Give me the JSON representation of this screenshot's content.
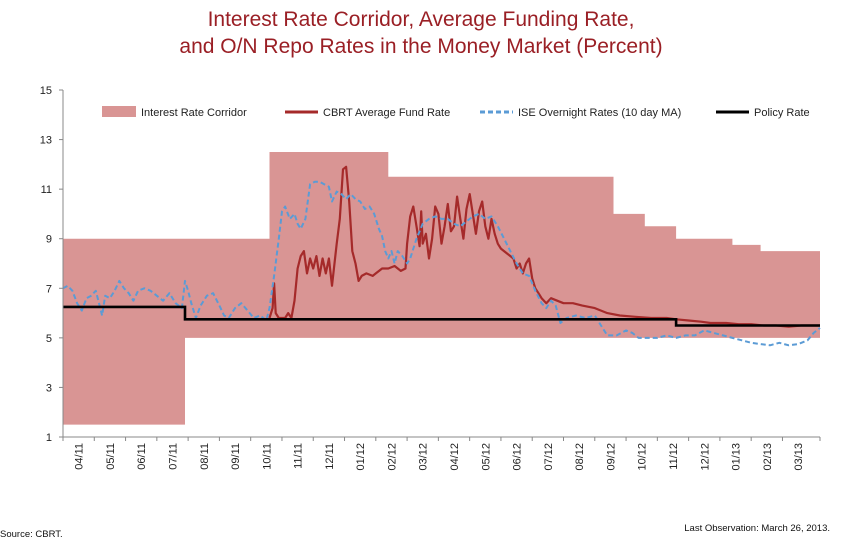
{
  "chart_data": {
    "type": "line",
    "title_line1": "Interest Rate Corridor, Average Funding Rate,",
    "title_line2": "and O/N Repo Rates in the Money Market (Percent)",
    "ylim": [
      1,
      15
    ],
    "yticks": [
      1,
      3,
      5,
      7,
      9,
      11,
      13,
      15
    ],
    "xlim": [
      0,
      24.2
    ],
    "xticks": [
      "04/11",
      "05/11",
      "06/11",
      "07/11",
      "08/11",
      "09/11",
      "10/11",
      "11/11",
      "12/11",
      "01/12",
      "02/12",
      "03/12",
      "04/12",
      "05/12",
      "06/12",
      "07/12",
      "08/12",
      "09/12",
      "10/12",
      "11/12",
      "12/12",
      "01/13",
      "02/13",
      "03/13"
    ],
    "legend_position": "top",
    "legend": [
      "Interest Rate Corridor",
      "CBRT Average Fund Rate",
      "ISE Overnight Rates (10 day MA)",
      "Policy Rate"
    ],
    "colors": {
      "corridor": "#d99594",
      "fund": "#a52a2a",
      "ise": "#5b9bd5",
      "policy": "#000000",
      "title": "#9a1f25"
    },
    "series": [
      {
        "name": "Interest Rate Corridor",
        "upper": [
          [
            0,
            9
          ],
          [
            6.6,
            9
          ],
          [
            6.6,
            12.5
          ],
          [
            10.4,
            12.5
          ],
          [
            10.4,
            11.5
          ],
          [
            17.6,
            11.5
          ],
          [
            17.6,
            10
          ],
          [
            18.6,
            10
          ],
          [
            18.6,
            9.5
          ],
          [
            19.6,
            9.5
          ],
          [
            19.6,
            9
          ],
          [
            21.4,
            9
          ],
          [
            21.4,
            8.75
          ],
          [
            22.3,
            8.75
          ],
          [
            22.3,
            8.5
          ],
          [
            24.2,
            8.5
          ]
        ],
        "lower": [
          [
            0,
            1.5
          ],
          [
            3.9,
            1.5
          ],
          [
            3.9,
            5
          ],
          [
            24.2,
            5
          ]
        ]
      },
      {
        "name": "CBRT Average Fund Rate",
        "values": [
          [
            6.6,
            5.8
          ],
          [
            6.7,
            6.2
          ],
          [
            6.75,
            7.2
          ],
          [
            6.8,
            6.0
          ],
          [
            6.9,
            5.8
          ],
          [
            7.1,
            5.8
          ],
          [
            7.2,
            6.0
          ],
          [
            7.3,
            5.8
          ],
          [
            7.4,
            6.5
          ],
          [
            7.5,
            7.8
          ],
          [
            7.6,
            8.3
          ],
          [
            7.7,
            8.5
          ],
          [
            7.8,
            7.6
          ],
          [
            7.9,
            8.2
          ],
          [
            8.0,
            7.8
          ],
          [
            8.1,
            8.3
          ],
          [
            8.2,
            7.5
          ],
          [
            8.3,
            8.2
          ],
          [
            8.4,
            7.6
          ],
          [
            8.5,
            8.2
          ],
          [
            8.6,
            7.1
          ],
          [
            8.75,
            8.8
          ],
          [
            8.85,
            9.8
          ],
          [
            8.95,
            11.8
          ],
          [
            9.05,
            11.9
          ],
          [
            9.15,
            10.5
          ],
          [
            9.25,
            8.5
          ],
          [
            9.35,
            8.0
          ],
          [
            9.45,
            7.3
          ],
          [
            9.55,
            7.5
          ],
          [
            9.7,
            7.6
          ],
          [
            9.9,
            7.5
          ],
          [
            10.0,
            7.6
          ],
          [
            10.2,
            7.8
          ],
          [
            10.4,
            7.8
          ],
          [
            10.6,
            7.9
          ],
          [
            10.8,
            7.7
          ],
          [
            10.95,
            7.8
          ],
          [
            11.0,
            8.8
          ],
          [
            11.1,
            9.9
          ],
          [
            11.2,
            10.3
          ],
          [
            11.3,
            9.5
          ],
          [
            11.4,
            8.7
          ],
          [
            11.45,
            10.1
          ],
          [
            11.5,
            8.8
          ],
          [
            11.6,
            9.2
          ],
          [
            11.7,
            8.2
          ],
          [
            11.8,
            9.0
          ],
          [
            11.9,
            10.3
          ],
          [
            12.0,
            10.0
          ],
          [
            12.1,
            8.8
          ],
          [
            12.2,
            9.5
          ],
          [
            12.3,
            10.4
          ],
          [
            12.4,
            9.3
          ],
          [
            12.5,
            9.5
          ],
          [
            12.6,
            10.7
          ],
          [
            12.7,
            9.8
          ],
          [
            12.8,
            9.0
          ],
          [
            12.9,
            10.2
          ],
          [
            13.0,
            10.8
          ],
          [
            13.1,
            10.0
          ],
          [
            13.2,
            9.2
          ],
          [
            13.3,
            10.1
          ],
          [
            13.4,
            10.5
          ],
          [
            13.5,
            9.5
          ],
          [
            13.6,
            9.0
          ],
          [
            13.7,
            9.8
          ],
          [
            13.8,
            9.2
          ],
          [
            13.9,
            8.8
          ],
          [
            14.0,
            8.6
          ],
          [
            14.2,
            8.4
          ],
          [
            14.4,
            8.2
          ],
          [
            14.5,
            7.8
          ],
          [
            14.6,
            8.0
          ],
          [
            14.7,
            7.6
          ],
          [
            14.8,
            8.0
          ],
          [
            14.9,
            8.2
          ],
          [
            15.0,
            7.4
          ],
          [
            15.1,
            7.0
          ],
          [
            15.2,
            6.8
          ],
          [
            15.3,
            6.6
          ],
          [
            15.45,
            6.4
          ],
          [
            15.6,
            6.6
          ],
          [
            15.8,
            6.5
          ],
          [
            16.0,
            6.4
          ],
          [
            16.3,
            6.4
          ],
          [
            16.6,
            6.3
          ],
          [
            17.0,
            6.2
          ],
          [
            17.4,
            6.0
          ],
          [
            17.8,
            5.9
          ],
          [
            18.3,
            5.85
          ],
          [
            18.8,
            5.8
          ],
          [
            19.3,
            5.8
          ],
          [
            19.6,
            5.75
          ],
          [
            20.0,
            5.7
          ],
          [
            20.4,
            5.65
          ],
          [
            20.7,
            5.6
          ],
          [
            21.2,
            5.6
          ],
          [
            21.6,
            5.55
          ],
          [
            22.0,
            5.55
          ],
          [
            22.4,
            5.5
          ],
          [
            22.8,
            5.5
          ],
          [
            23.2,
            5.45
          ],
          [
            23.6,
            5.5
          ],
          [
            24.0,
            5.5
          ],
          [
            24.2,
            5.5
          ]
        ]
      },
      {
        "name": "ISE Overnight Rates (10 day MA)",
        "values": [
          [
            0,
            7.0
          ],
          [
            0.15,
            7.1
          ],
          [
            0.3,
            6.9
          ],
          [
            0.45,
            6.4
          ],
          [
            0.6,
            6.1
          ],
          [
            0.75,
            6.6
          ],
          [
            0.9,
            6.7
          ],
          [
            1.05,
            6.9
          ],
          [
            1.15,
            6.4
          ],
          [
            1.25,
            5.9
          ],
          [
            1.35,
            6.7
          ],
          [
            1.5,
            6.6
          ],
          [
            1.65,
            6.9
          ],
          [
            1.8,
            7.3
          ],
          [
            1.95,
            7.0
          ],
          [
            2.1,
            6.8
          ],
          [
            2.25,
            6.5
          ],
          [
            2.4,
            6.9
          ],
          [
            2.6,
            7.0
          ],
          [
            2.8,
            6.9
          ],
          [
            3.0,
            6.7
          ],
          [
            3.2,
            6.5
          ],
          [
            3.4,
            6.8
          ],
          [
            3.6,
            6.4
          ],
          [
            3.8,
            6.2
          ],
          [
            3.9,
            7.3
          ],
          [
            4.0,
            6.9
          ],
          [
            4.1,
            6.4
          ],
          [
            4.25,
            5.8
          ],
          [
            4.4,
            6.3
          ],
          [
            4.6,
            6.7
          ],
          [
            4.8,
            6.8
          ],
          [
            5.0,
            6.3
          ],
          [
            5.15,
            5.9
          ],
          [
            5.3,
            5.8
          ],
          [
            5.5,
            6.2
          ],
          [
            5.7,
            6.4
          ],
          [
            5.9,
            6.1
          ],
          [
            6.1,
            5.8
          ],
          [
            6.3,
            5.9
          ],
          [
            6.5,
            5.7
          ],
          [
            6.6,
            6.2
          ],
          [
            6.75,
            7.5
          ],
          [
            6.9,
            9.0
          ],
          [
            7.0,
            10.1
          ],
          [
            7.1,
            10.3
          ],
          [
            7.25,
            9.8
          ],
          [
            7.4,
            10.0
          ],
          [
            7.5,
            9.6
          ],
          [
            7.6,
            9.4
          ],
          [
            7.75,
            9.8
          ],
          [
            7.9,
            11.2
          ],
          [
            8.05,
            11.3
          ],
          [
            8.2,
            11.3
          ],
          [
            8.35,
            11.2
          ],
          [
            8.5,
            11.1
          ],
          [
            8.6,
            10.5
          ],
          [
            8.75,
            10.9
          ],
          [
            8.9,
            10.8
          ],
          [
            9.05,
            10.6
          ],
          [
            9.2,
            10.8
          ],
          [
            9.35,
            10.6
          ],
          [
            9.5,
            10.5
          ],
          [
            9.65,
            10.2
          ],
          [
            9.8,
            10.3
          ],
          [
            9.95,
            10.0
          ],
          [
            10.1,
            9.4
          ],
          [
            10.2,
            9.1
          ],
          [
            10.3,
            8.5
          ],
          [
            10.4,
            8.2
          ],
          [
            10.5,
            8.5
          ],
          [
            10.6,
            8.0
          ],
          [
            10.7,
            8.5
          ],
          [
            10.85,
            8.3
          ],
          [
            11.0,
            8.0
          ],
          [
            11.1,
            8.2
          ],
          [
            11.3,
            9.0
          ],
          [
            11.5,
            9.6
          ],
          [
            11.7,
            9.8
          ],
          [
            11.9,
            9.9
          ],
          [
            12.1,
            9.8
          ],
          [
            12.3,
            9.8
          ],
          [
            12.5,
            9.6
          ],
          [
            12.7,
            9.5
          ],
          [
            12.9,
            9.7
          ],
          [
            13.1,
            9.9
          ],
          [
            13.3,
            10.0
          ],
          [
            13.5,
            9.8
          ],
          [
            13.7,
            9.9
          ],
          [
            13.9,
            9.5
          ],
          [
            14.1,
            9.0
          ],
          [
            14.3,
            8.5
          ],
          [
            14.5,
            8.0
          ],
          [
            14.7,
            7.6
          ],
          [
            14.9,
            7.5
          ],
          [
            15.1,
            6.9
          ],
          [
            15.3,
            6.4
          ],
          [
            15.45,
            6.2
          ],
          [
            15.6,
            6.5
          ],
          [
            15.75,
            6.3
          ],
          [
            15.9,
            5.6
          ],
          [
            16.1,
            5.8
          ],
          [
            16.4,
            5.9
          ],
          [
            16.7,
            5.8
          ],
          [
            17.0,
            5.9
          ],
          [
            17.2,
            5.5
          ],
          [
            17.4,
            5.1
          ],
          [
            17.7,
            5.1
          ],
          [
            18.0,
            5.3
          ],
          [
            18.2,
            5.2
          ],
          [
            18.4,
            5.0
          ],
          [
            18.7,
            5.0
          ],
          [
            19.0,
            5.0
          ],
          [
            19.3,
            5.1
          ],
          [
            19.6,
            5.0
          ],
          [
            19.9,
            5.1
          ],
          [
            20.2,
            5.1
          ],
          [
            20.5,
            5.3
          ],
          [
            20.8,
            5.2
          ],
          [
            21.1,
            5.1
          ],
          [
            21.4,
            5.0
          ],
          [
            21.7,
            4.9
          ],
          [
            22.0,
            4.8
          ],
          [
            22.3,
            4.75
          ],
          [
            22.6,
            4.7
          ],
          [
            22.9,
            4.8
          ],
          [
            23.2,
            4.7
          ],
          [
            23.5,
            4.75
          ],
          [
            23.8,
            4.9
          ],
          [
            24.0,
            5.2
          ],
          [
            24.2,
            5.4
          ]
        ]
      },
      {
        "name": "Policy Rate",
        "values": [
          [
            0,
            6.25
          ],
          [
            3.9,
            6.25
          ],
          [
            3.9,
            5.75
          ],
          [
            19.6,
            5.75
          ],
          [
            19.6,
            5.5
          ],
          [
            24.2,
            5.5
          ]
        ]
      }
    ]
  },
  "footer": {
    "source": "Source: CBRT.",
    "last_observation": "Last Observation: March 26, 2013."
  }
}
